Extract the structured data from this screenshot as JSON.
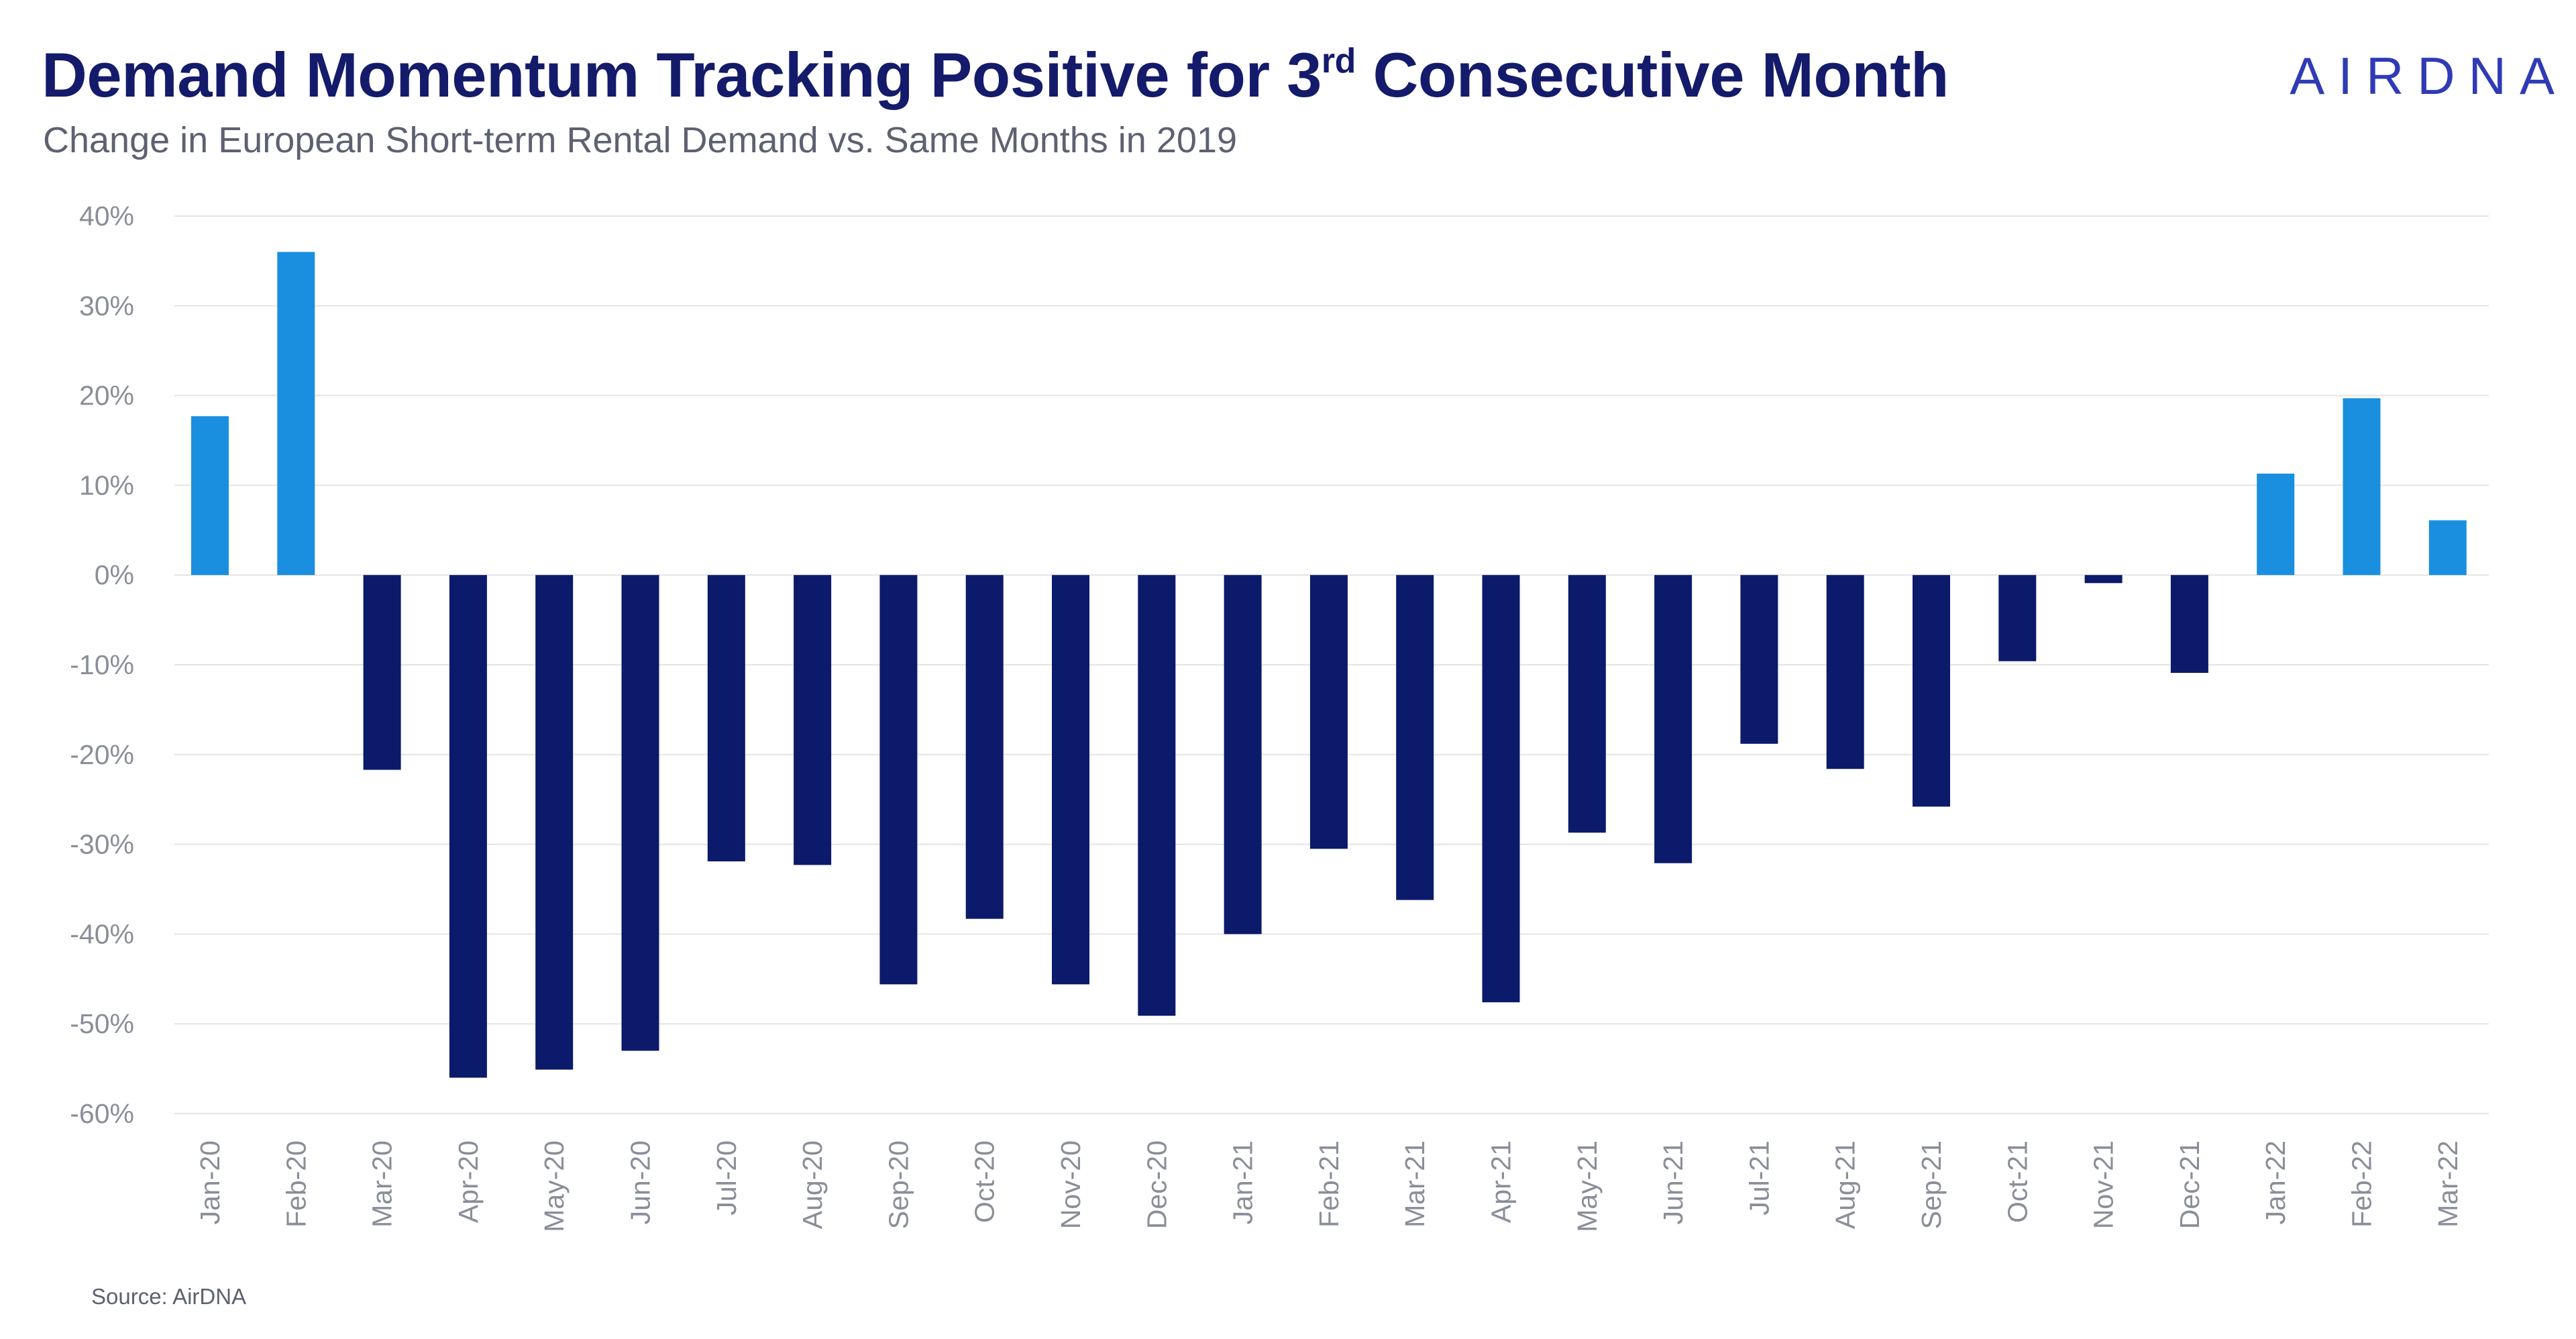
{
  "header": {
    "title_main": "Demand Momentum Tracking Positive for 3",
    "title_sup": "rd",
    "title_end": " Consecutive Month",
    "subtitle": "Change in European Short-term Rental Demand vs. Same Months in 2019",
    "logo": "AIRDNA"
  },
  "footer": {
    "source": "Source: AirDNA"
  },
  "colors": {
    "positive": "#1b8fdf",
    "negative": "#0b1a6a",
    "grid": "#e4e4e4",
    "axis_text": "#8a8e99"
  },
  "chart_data": {
    "type": "bar",
    "categories": [
      "Jan-20",
      "Feb-20",
      "Mar-20",
      "Apr-20",
      "May-20",
      "Jun-20",
      "Jul-20",
      "Aug-20",
      "Sep-20",
      "Oct-20",
      "Nov-20",
      "Dec-20",
      "Jan-21",
      "Feb-21",
      "Mar-21",
      "Apr-21",
      "May-21",
      "Jun-21",
      "Jul-21",
      "Aug-21",
      "Sep-21",
      "Oct-21",
      "Nov-21",
      "Dec-21",
      "Jan-22",
      "Feb-22",
      "Mar-22"
    ],
    "values": [
      17.7,
      36.0,
      -21.7,
      -56.0,
      -55.1,
      -53.0,
      -31.9,
      -32.3,
      -45.6,
      -38.3,
      -45.6,
      -49.1,
      -40.0,
      -30.5,
      -36.2,
      -47.6,
      -28.7,
      -32.1,
      -18.8,
      -21.6,
      -25.8,
      -9.6,
      -0.9,
      -10.9,
      11.3,
      19.7,
      6.1
    ],
    "ylim": [
      -60,
      40
    ],
    "yticks": [
      40,
      30,
      20,
      10,
      0,
      -10,
      -20,
      -30,
      -40,
      -50,
      -60
    ],
    "ytick_labels": [
      "40%",
      "30%",
      "20%",
      "10%",
      "0%",
      "-10%",
      "-20%",
      "-30%",
      "-40%",
      "-50%",
      "-60%"
    ],
    "xlabel": "",
    "ylabel": "",
    "grid": true,
    "legend": "none"
  }
}
